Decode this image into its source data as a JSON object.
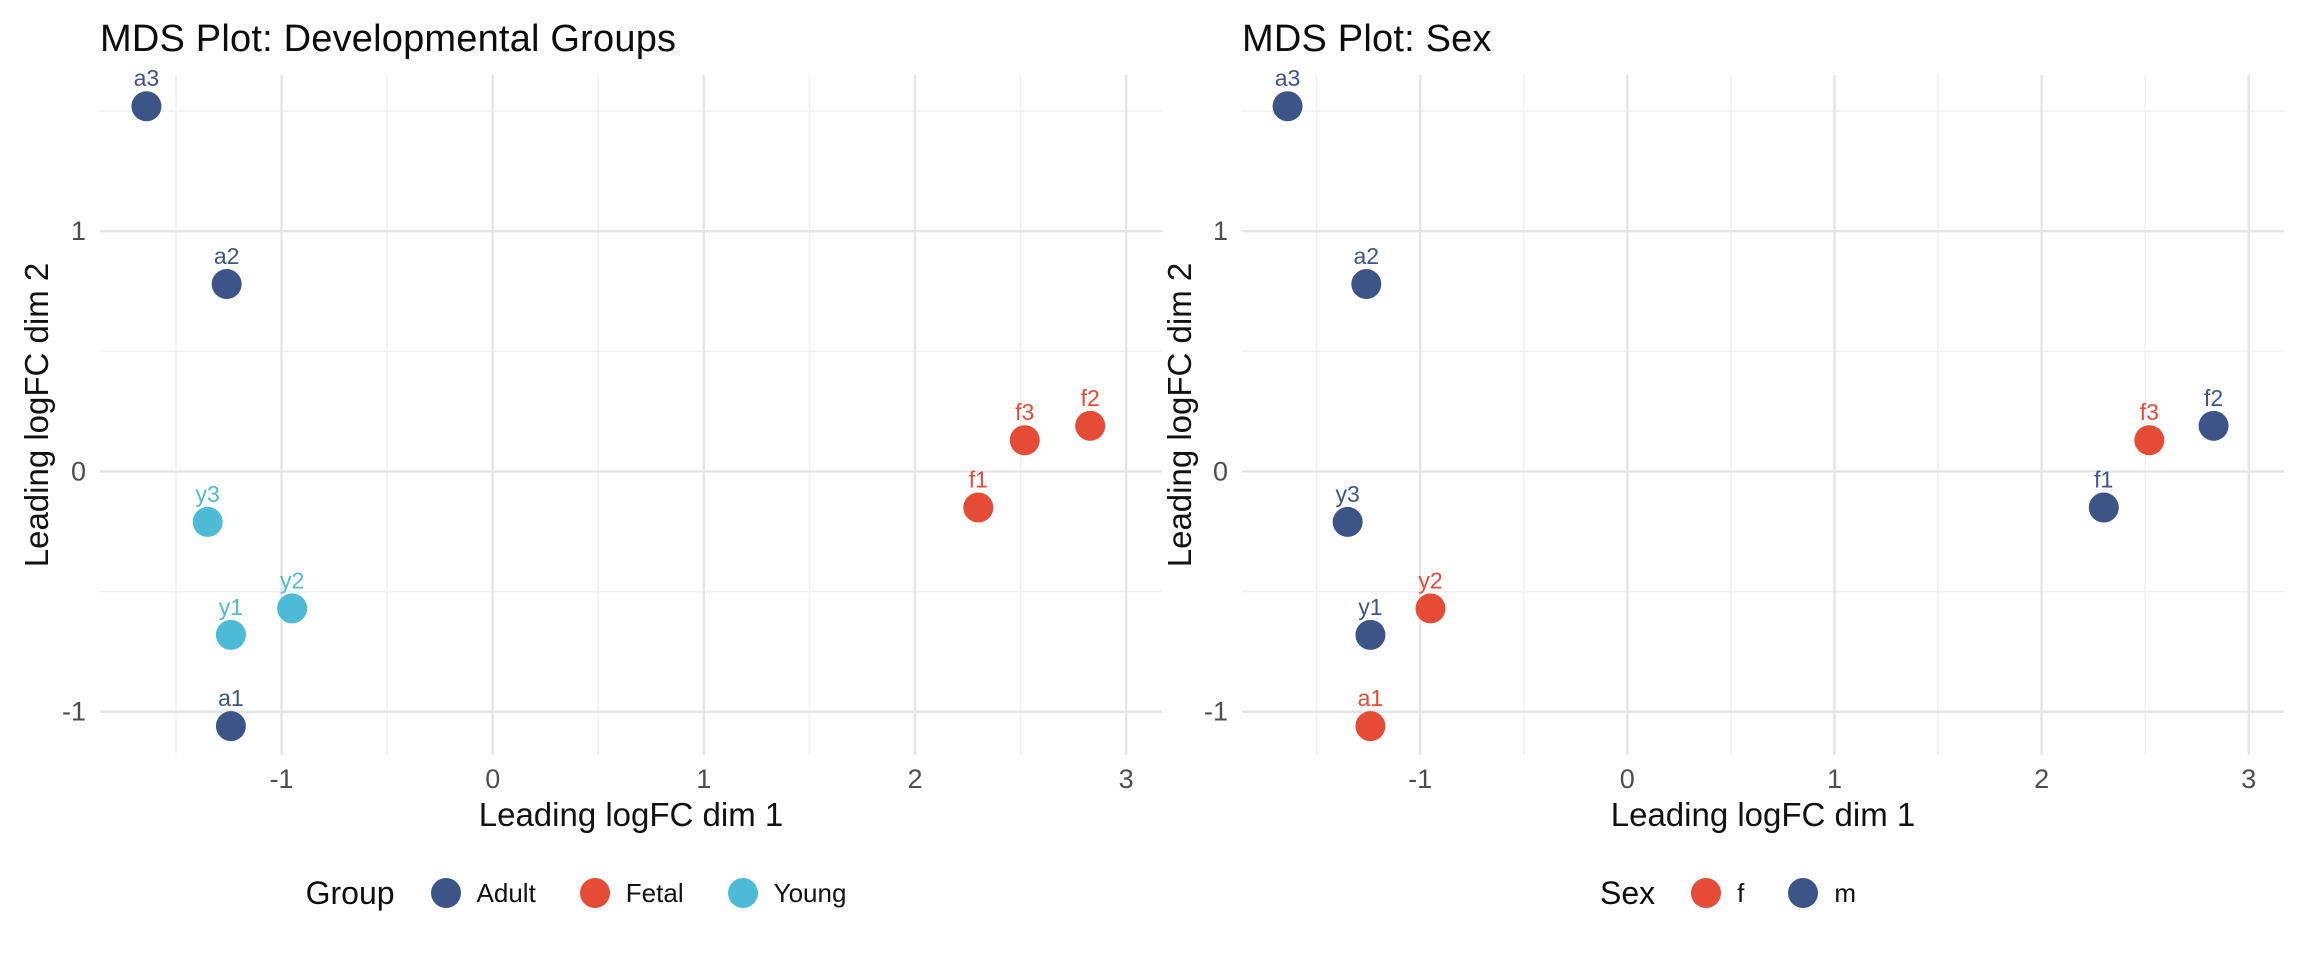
{
  "figure": {
    "background": "#ffffff"
  },
  "style": {
    "grid_major_color": "#e5e5e7",
    "grid_minor_color": "#f1f1f2",
    "tick_label_color": "#4d4d4d",
    "title_color": "#0d0d0d",
    "point_radius": 15,
    "legend_dot_diameter": 30
  },
  "chart_data": [
    {
      "type": "scatter",
      "title": "MDS Plot: Developmental Groups",
      "xlabel": "Leading logFC dim 1",
      "ylabel": "Leading logFC dim 2",
      "xlim": [
        -1.86,
        3.17
      ],
      "ylim": [
        -1.18,
        1.65
      ],
      "xticks": [
        "-1",
        "0",
        "1",
        "2",
        "3"
      ],
      "xtick_values": [
        -1,
        0,
        1,
        2,
        3
      ],
      "yticks": [
        "-1",
        "0",
        "1"
      ],
      "ytick_values": [
        -1,
        0,
        1
      ],
      "x_minor": [
        -1.5,
        -0.5,
        0.5,
        1.5,
        2.5
      ],
      "y_minor": [
        -0.5,
        0.5,
        1.5
      ],
      "grid": "major+minor",
      "legend": {
        "title": "Group",
        "position": "bottom",
        "entries": [
          {
            "label": "Adult",
            "color": "#3C5488"
          },
          {
            "label": "Fetal",
            "color": "#E64B35"
          },
          {
            "label": "Young",
            "color": "#4DBBD5"
          }
        ]
      },
      "series": [
        {
          "name": "Adult",
          "color": "#3C5488",
          "points": [
            {
              "label": "a3",
              "x": -1.64,
              "y": 1.52
            },
            {
              "label": "a2",
              "x": -1.26,
              "y": 0.78
            },
            {
              "label": "a1",
              "x": -1.24,
              "y": -1.06
            }
          ]
        },
        {
          "name": "Fetal",
          "color": "#E64B35",
          "points": [
            {
              "label": "f1",
              "x": 2.3,
              "y": -0.15
            },
            {
              "label": "f3",
              "x": 2.52,
              "y": 0.13
            },
            {
              "label": "f2",
              "x": 2.83,
              "y": 0.19
            }
          ]
        },
        {
          "name": "Young",
          "color": "#4DBBD5",
          "points": [
            {
              "label": "y3",
              "x": -1.35,
              "y": -0.21
            },
            {
              "label": "y2",
              "x": -0.95,
              "y": -0.57
            },
            {
              "label": "y1",
              "x": -1.24,
              "y": -0.68
            }
          ]
        }
      ]
    },
    {
      "type": "scatter",
      "title": "MDS Plot: Sex",
      "xlabel": "Leading logFC dim 1",
      "ylabel": "Leading logFC dim 2",
      "xlim": [
        -1.86,
        3.17
      ],
      "ylim": [
        -1.18,
        1.65
      ],
      "xticks": [
        "-1",
        "0",
        "1",
        "2",
        "3"
      ],
      "xtick_values": [
        -1,
        0,
        1,
        2,
        3
      ],
      "yticks": [
        "-1",
        "0",
        "1"
      ],
      "ytick_values": [
        -1,
        0,
        1
      ],
      "x_minor": [
        -1.5,
        -0.5,
        0.5,
        1.5,
        2.5
      ],
      "y_minor": [
        -0.5,
        0.5,
        1.5
      ],
      "grid": "major+minor",
      "legend": {
        "title": "Sex",
        "position": "bottom",
        "entries": [
          {
            "label": "f",
            "color": "#E64B35"
          },
          {
            "label": "m",
            "color": "#3C5488"
          }
        ]
      },
      "series": [
        {
          "name": "f",
          "color": "#E64B35",
          "points": [
            {
              "label": "a1",
              "x": -1.24,
              "y": -1.06
            },
            {
              "label": "y2",
              "x": -0.95,
              "y": -0.57
            },
            {
              "label": "f3",
              "x": 2.52,
              "y": 0.13
            }
          ]
        },
        {
          "name": "m",
          "color": "#3C5488",
          "points": [
            {
              "label": "a3",
              "x": -1.64,
              "y": 1.52
            },
            {
              "label": "a2",
              "x": -1.26,
              "y": 0.78
            },
            {
              "label": "y3",
              "x": -1.35,
              "y": -0.21
            },
            {
              "label": "y1",
              "x": -1.24,
              "y": -0.68
            },
            {
              "label": "f1",
              "x": 2.3,
              "y": -0.15
            },
            {
              "label": "f2",
              "x": 2.83,
              "y": 0.19
            }
          ]
        }
      ]
    }
  ]
}
